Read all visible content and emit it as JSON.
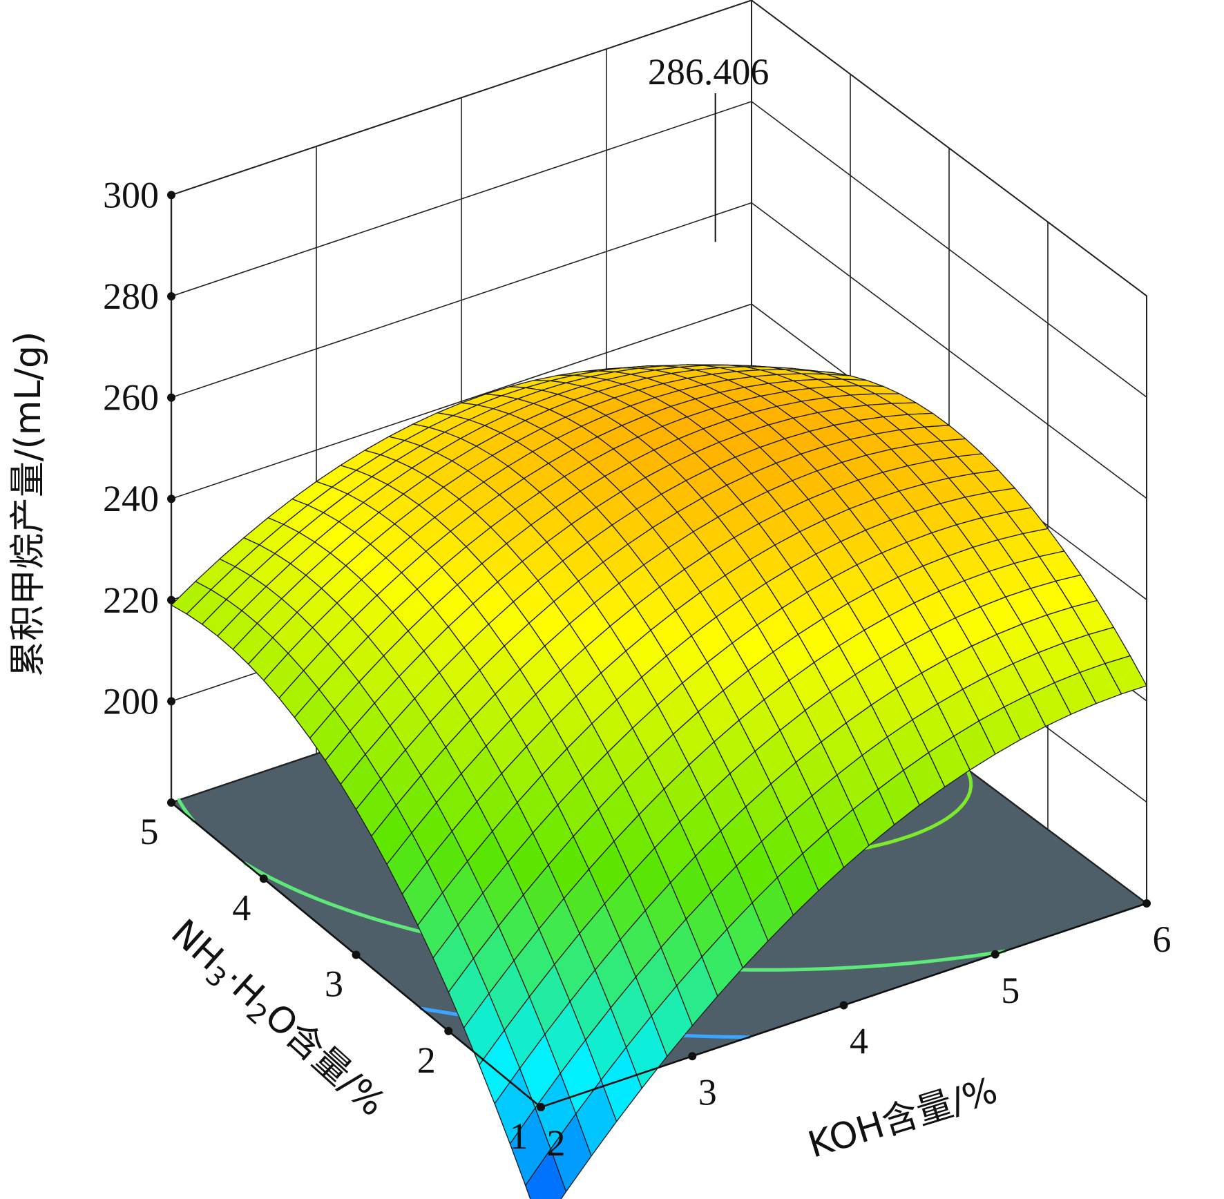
{
  "chart_data": {
    "type": "surface",
    "title": "",
    "zlabel": "累积甲烷产量/(mL/g)",
    "xlabel": "KOH含量/%",
    "ylabel": "NH3·H2O含量/%",
    "ylabel_parts": {
      "a": "NH",
      "b": "3",
      "c": "·H",
      "d": "2",
      "e": "O含量/%"
    },
    "x_ticks": [
      "2",
      "3",
      "4",
      "5",
      "6"
    ],
    "y_ticks": [
      "1",
      "2",
      "3",
      "4",
      "5"
    ],
    "z_ticks": [
      "200",
      "220",
      "240",
      "260",
      "280",
      "300"
    ],
    "xlim": [
      2,
      6
    ],
    "ylim": [
      1,
      5
    ],
    "zlim": [
      180,
      300
    ],
    "peak": {
      "x": 4.75,
      "y": 3.5,
      "value": 286.406,
      "label": "286.406"
    },
    "surface_corners": [
      {
        "x": 2,
        "y": 1,
        "z": 156
      },
      {
        "x": 6,
        "y": 1,
        "z": 223
      },
      {
        "x": 2,
        "y": 5,
        "z": 219
      },
      {
        "x": 6,
        "y": 5,
        "z": 225
      }
    ],
    "contours": [
      {
        "level": 195,
        "color": "#3aa6ff"
      },
      {
        "level": 220,
        "color": "#5fe87a"
      },
      {
        "level": 245,
        "color": "#7dea2a"
      },
      {
        "level": 260,
        "color": "#c8ea20"
      },
      {
        "level": 276,
        "color": "#ff9a1a"
      }
    ],
    "colormap": [
      "#0018ff",
      "#00f0ff",
      "#5ce600",
      "#ffff00",
      "#ff7a00",
      "#ff0000"
    ],
    "grid": true
  }
}
